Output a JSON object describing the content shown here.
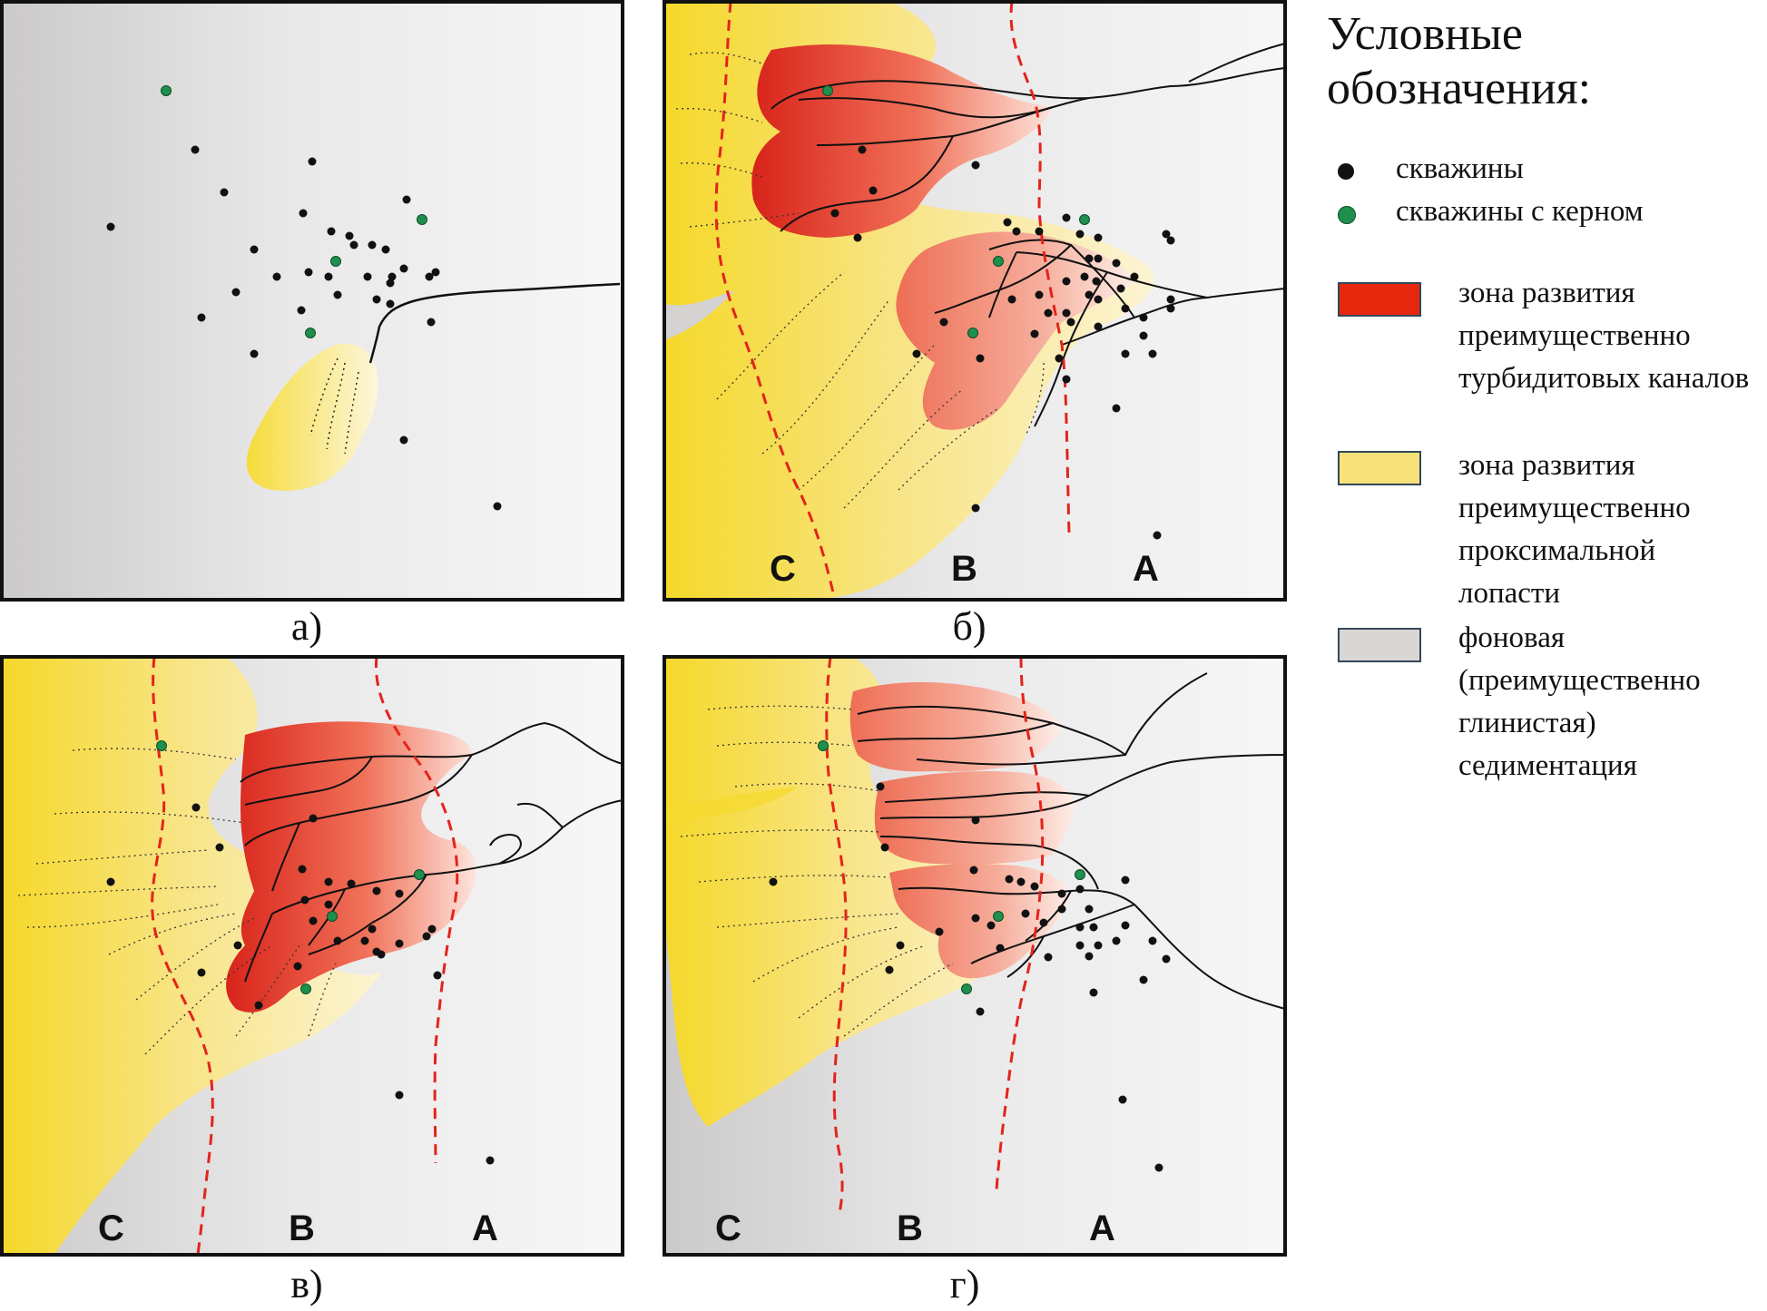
{
  "panels": [
    {
      "id": "a",
      "caption": "а)",
      "zones": []
    },
    {
      "id": "b",
      "caption": "б)",
      "zones": [
        "C",
        "B",
        "A"
      ]
    },
    {
      "id": "c",
      "caption": "в)",
      "zones": [
        "C",
        "B",
        "A"
      ]
    },
    {
      "id": "d",
      "caption": "г)",
      "zones": [
        "C",
        "B",
        "A"
      ]
    }
  ],
  "legend": {
    "title": "Условные обозначения:",
    "items": [
      {
        "label": "скважины",
        "symbol": "dot",
        "color": "#111111"
      },
      {
        "label": "скважины с керном",
        "symbol": "dot",
        "color": "#1f8f4e"
      },
      {
        "label": "зона развития преимущественно турбидитовых каналов",
        "symbol": "swatch",
        "color": "#e8270f"
      },
      {
        "label": "зона развития преимущественно проксимальной лопасти",
        "symbol": "swatch",
        "color": "#f7e27a"
      },
      {
        "label": "фоновая (преимущественно глинистая) седиментация",
        "symbol": "swatch",
        "color": "#d9d6d6"
      }
    ]
  },
  "colors": {
    "turbidite_red": "#e0301a",
    "proximal_yellow": "#f5dc54",
    "background_grey": "#d5d2d2",
    "boundary_dashed": "#e3241b",
    "well_black": "#111111",
    "well_core_green": "#1f8f4e"
  }
}
